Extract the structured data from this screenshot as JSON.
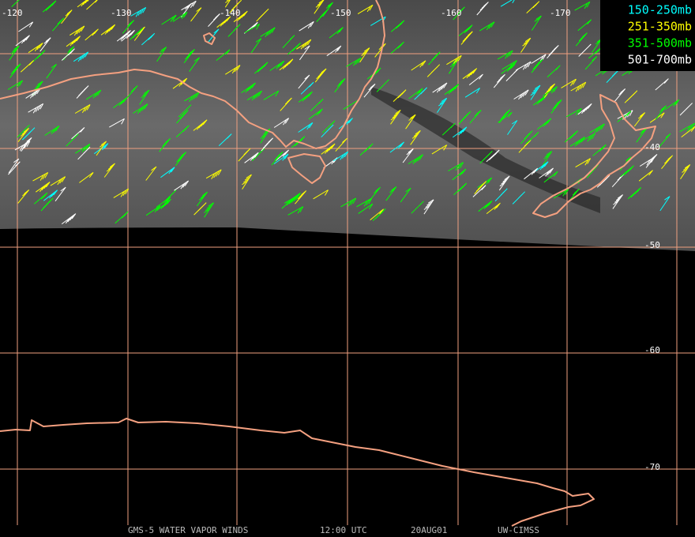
{
  "map": {
    "longitude_labels": [
      "-120",
      "-130",
      "-140",
      "-150",
      "-160",
      "-170"
    ],
    "latitude_labels": [
      "-40",
      "-50",
      "-60",
      "-70"
    ],
    "legend": [
      {
        "label": "150-250mb",
        "color": "#00ffff"
      },
      {
        "label": "251-350mb",
        "color": "#ffff00"
      },
      {
        "label": "351-500mb",
        "color": "#00ff00"
      },
      {
        "label": "501-700mb",
        "color": "#ffffff"
      }
    ],
    "footer": [
      "GMS-5 WATER VAPOR WINDS",
      "12:00 UTC",
      "20AUG01",
      "UW-CIMSS"
    ]
  }
}
